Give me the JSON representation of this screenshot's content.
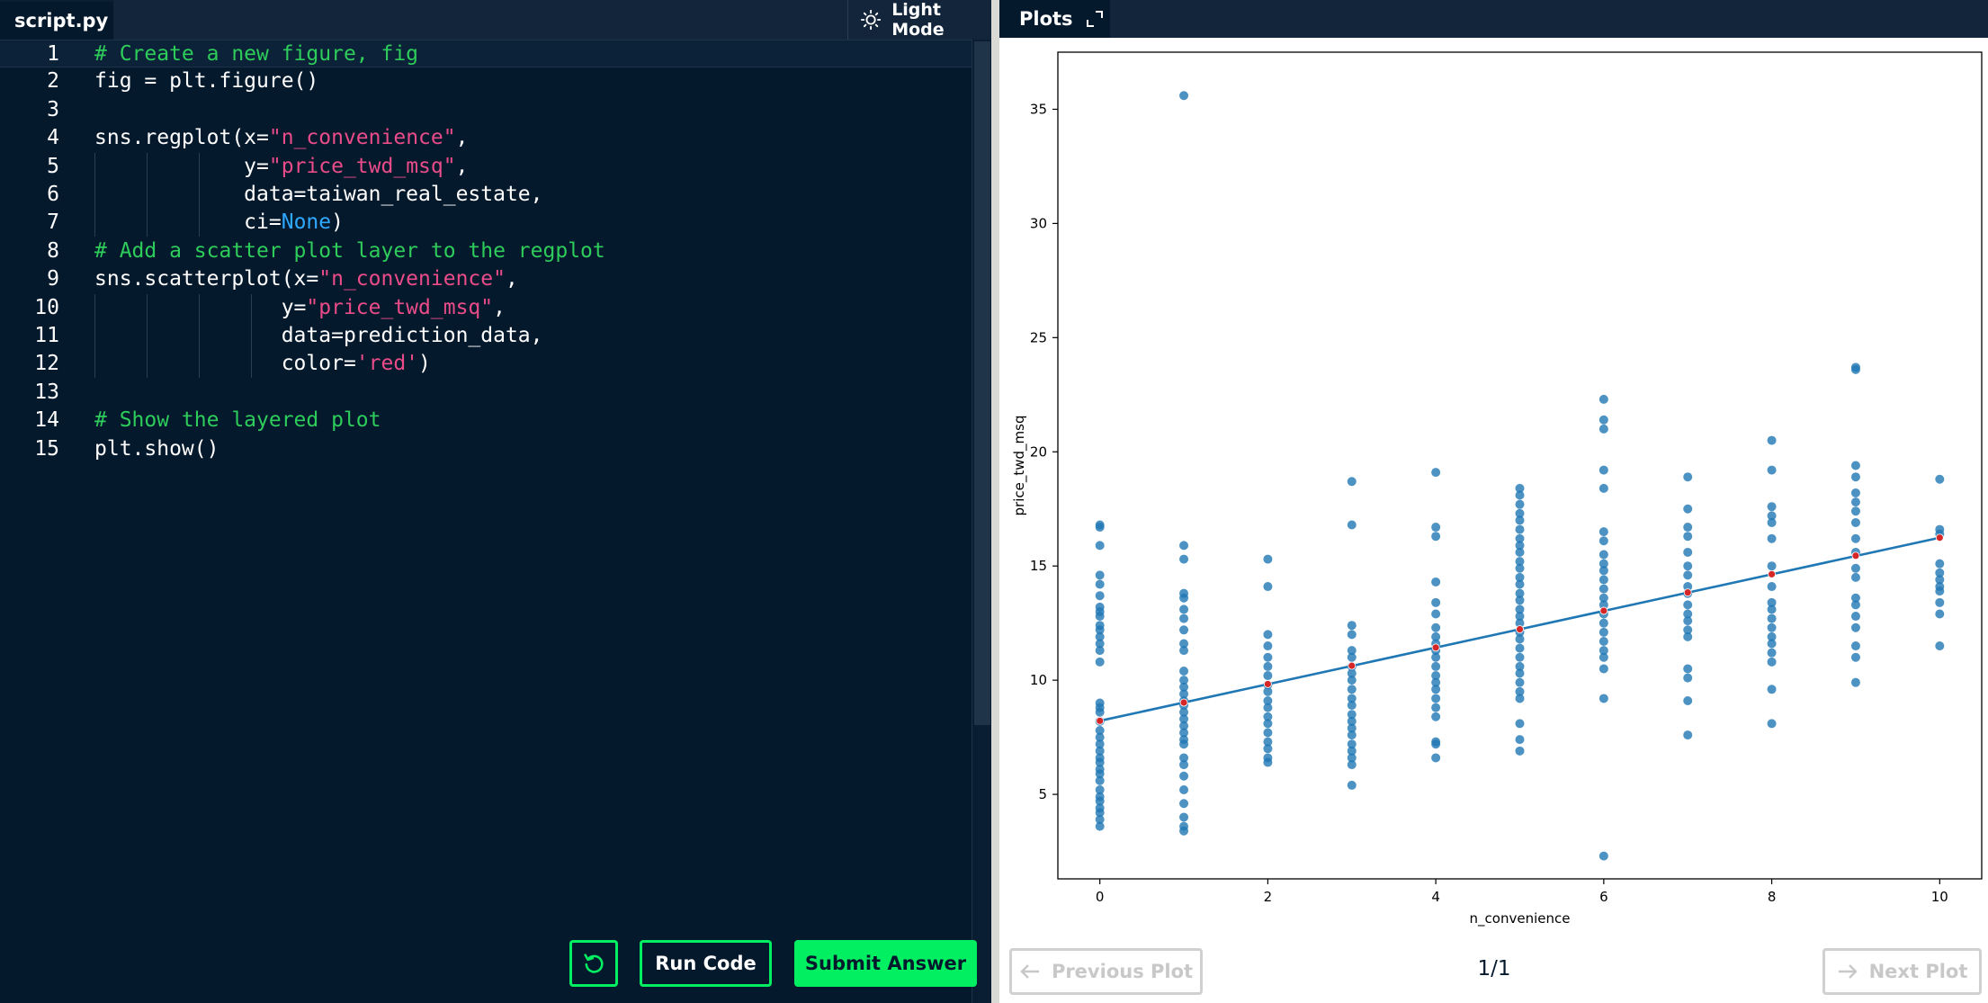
{
  "editor": {
    "tab_label": "script.py",
    "theme_toggle_label": "Light Mode",
    "lines": [
      {
        "num": "1",
        "tokens": [
          {
            "t": "# Create a new figure, fig",
            "c": "comment"
          }
        ]
      },
      {
        "num": "2",
        "tokens": [
          {
            "t": "fig = plt.figure()",
            "c": "plain"
          }
        ]
      },
      {
        "num": "3",
        "tokens": []
      },
      {
        "num": "4",
        "tokens": [
          {
            "t": "sns.regplot(x=",
            "c": "plain"
          },
          {
            "t": "\"n_convenience\"",
            "c": "string"
          },
          {
            "t": ",",
            "c": "plain"
          }
        ]
      },
      {
        "num": "5",
        "tokens": [
          {
            "t": "            y=",
            "c": "plain"
          },
          {
            "t": "\"price_twd_msq\"",
            "c": "string"
          },
          {
            "t": ",",
            "c": "plain"
          }
        ]
      },
      {
        "num": "6",
        "tokens": [
          {
            "t": "            data=taiwan_real_estate,",
            "c": "plain"
          }
        ]
      },
      {
        "num": "7",
        "tokens": [
          {
            "t": "            ci=",
            "c": "plain"
          },
          {
            "t": "None",
            "c": "none"
          },
          {
            "t": ")",
            "c": "plain"
          }
        ]
      },
      {
        "num": "8",
        "tokens": [
          {
            "t": "# Add a scatter plot layer to the regplot",
            "c": "comment"
          }
        ]
      },
      {
        "num": "9",
        "tokens": [
          {
            "t": "sns.scatterplot(x=",
            "c": "plain"
          },
          {
            "t": "\"n_convenience\"",
            "c": "string"
          },
          {
            "t": ",",
            "c": "plain"
          }
        ]
      },
      {
        "num": "10",
        "tokens": [
          {
            "t": "               y=",
            "c": "plain"
          },
          {
            "t": "\"price_twd_msq\"",
            "c": "string"
          },
          {
            "t": ",",
            "c": "plain"
          }
        ]
      },
      {
        "num": "11",
        "tokens": [
          {
            "t": "               data=prediction_data,",
            "c": "plain"
          }
        ]
      },
      {
        "num": "12",
        "tokens": [
          {
            "t": "               color=",
            "c": "plain"
          },
          {
            "t": "'red'",
            "c": "string"
          },
          {
            "t": ")",
            "c": "plain"
          }
        ]
      },
      {
        "num": "13",
        "tokens": []
      },
      {
        "num": "14",
        "tokens": [
          {
            "t": "# Show the layered plot",
            "c": "comment"
          }
        ]
      },
      {
        "num": "15",
        "tokens": [
          {
            "t": "plt.show()",
            "c": "plain"
          }
        ]
      }
    ]
  },
  "buttons": {
    "run_label": "Run Code",
    "submit_label": "Submit Answer"
  },
  "plots": {
    "tab_label": "Plots",
    "prev_label": "Previous Plot",
    "next_label": "Next Plot",
    "page_indicator": "1/1"
  },
  "colors": {
    "accent": "#03ef62",
    "editor_bg": "#05192d",
    "point_blue": "#1f77b4",
    "prediction_red": "#d62728"
  },
  "chart_data": {
    "type": "scatter",
    "xlabel": "n_convenience",
    "ylabel": "price_twd_msq",
    "xlim": [
      -0.5,
      10.5
    ],
    "ylim": [
      1.3,
      37.5
    ],
    "xticks": [
      0,
      2,
      4,
      6,
      8,
      10
    ],
    "yticks": [
      5,
      10,
      15,
      20,
      25,
      30,
      35
    ],
    "grid": false,
    "series": [
      {
        "kind": "scatter",
        "points": [
          [
            0,
            16.8
          ],
          [
            0,
            16.7
          ],
          [
            0,
            15.9
          ],
          [
            0,
            14.6
          ],
          [
            0,
            14.2
          ],
          [
            0,
            13.7
          ],
          [
            0,
            13.2
          ],
          [
            0,
            13.0
          ],
          [
            0,
            12.8
          ],
          [
            0,
            12.4
          ],
          [
            0,
            12.2
          ],
          [
            0,
            11.9
          ],
          [
            0,
            11.6
          ],
          [
            0,
            11.3
          ],
          [
            0,
            10.8
          ],
          [
            0,
            9.0
          ],
          [
            0,
            8.8
          ],
          [
            0,
            8.6
          ],
          [
            0,
            8.2
          ],
          [
            0,
            7.8
          ],
          [
            0,
            7.5
          ],
          [
            0,
            7.2
          ],
          [
            0,
            6.9
          ],
          [
            0,
            6.6
          ],
          [
            0,
            6.4
          ],
          [
            0,
            6.1
          ],
          [
            0,
            5.9
          ],
          [
            0,
            5.6
          ],
          [
            0,
            5.2
          ],
          [
            0,
            4.9
          ],
          [
            0,
            4.7
          ],
          [
            0,
            4.4
          ],
          [
            0,
            4.2
          ],
          [
            0,
            3.9
          ],
          [
            0,
            3.6
          ],
          [
            1,
            35.6
          ],
          [
            1,
            15.9
          ],
          [
            1,
            15.3
          ],
          [
            1,
            13.8
          ],
          [
            1,
            13.6
          ],
          [
            1,
            13.1
          ],
          [
            1,
            12.7
          ],
          [
            1,
            12.2
          ],
          [
            1,
            11.6
          ],
          [
            1,
            11.3
          ],
          [
            1,
            10.4
          ],
          [
            1,
            10.0
          ],
          [
            1,
            9.7
          ],
          [
            1,
            9.4
          ],
          [
            1,
            9.1
          ],
          [
            1,
            8.9
          ],
          [
            1,
            8.6
          ],
          [
            1,
            8.3
          ],
          [
            1,
            8.0
          ],
          [
            1,
            7.7
          ],
          [
            1,
            7.4
          ],
          [
            1,
            7.2
          ],
          [
            1,
            6.6
          ],
          [
            1,
            6.3
          ],
          [
            1,
            5.8
          ],
          [
            1,
            5.2
          ],
          [
            1,
            4.6
          ],
          [
            1,
            4.0
          ],
          [
            1,
            3.6
          ],
          [
            1,
            3.4
          ],
          [
            2,
            15.3
          ],
          [
            2,
            14.1
          ],
          [
            2,
            12.0
          ],
          [
            2,
            11.5
          ],
          [
            2,
            11.0
          ],
          [
            2,
            10.6
          ],
          [
            2,
            10.2
          ],
          [
            2,
            9.8
          ],
          [
            2,
            9.5
          ],
          [
            2,
            9.1
          ],
          [
            2,
            8.8
          ],
          [
            2,
            8.4
          ],
          [
            2,
            8.1
          ],
          [
            2,
            7.7
          ],
          [
            2,
            7.3
          ],
          [
            2,
            7.0
          ],
          [
            2,
            6.6
          ],
          [
            2,
            6.4
          ],
          [
            3,
            18.7
          ],
          [
            3,
            16.8
          ],
          [
            3,
            12.4
          ],
          [
            3,
            12.0
          ],
          [
            3,
            11.3
          ],
          [
            3,
            11.0
          ],
          [
            3,
            10.6
          ],
          [
            3,
            10.3
          ],
          [
            3,
            10.0
          ],
          [
            3,
            9.6
          ],
          [
            3,
            9.2
          ],
          [
            3,
            8.9
          ],
          [
            3,
            8.5
          ],
          [
            3,
            8.2
          ],
          [
            3,
            7.9
          ],
          [
            3,
            7.6
          ],
          [
            3,
            7.2
          ],
          [
            3,
            6.9
          ],
          [
            3,
            6.6
          ],
          [
            3,
            6.3
          ],
          [
            3,
            5.4
          ],
          [
            4,
            19.1
          ],
          [
            4,
            16.7
          ],
          [
            4,
            16.3
          ],
          [
            4,
            14.3
          ],
          [
            4,
            13.4
          ],
          [
            4,
            12.9
          ],
          [
            4,
            12.3
          ],
          [
            4,
            11.9
          ],
          [
            4,
            11.6
          ],
          [
            4,
            11.3
          ],
          [
            4,
            11.0
          ],
          [
            4,
            10.6
          ],
          [
            4,
            10.2
          ],
          [
            4,
            9.9
          ],
          [
            4,
            9.6
          ],
          [
            4,
            9.2
          ],
          [
            4,
            8.8
          ],
          [
            4,
            8.4
          ],
          [
            4,
            7.3
          ],
          [
            4,
            7.2
          ],
          [
            4,
            6.6
          ],
          [
            5,
            18.4
          ],
          [
            5,
            18.1
          ],
          [
            5,
            17.7
          ],
          [
            5,
            17.3
          ],
          [
            5,
            17.0
          ],
          [
            5,
            16.6
          ],
          [
            5,
            16.2
          ],
          [
            5,
            15.9
          ],
          [
            5,
            15.6
          ],
          [
            5,
            15.2
          ],
          [
            5,
            14.9
          ],
          [
            5,
            14.5
          ],
          [
            5,
            14.2
          ],
          [
            5,
            13.8
          ],
          [
            5,
            13.5
          ],
          [
            5,
            13.1
          ],
          [
            5,
            12.8
          ],
          [
            5,
            12.5
          ],
          [
            5,
            12.1
          ],
          [
            5,
            11.8
          ],
          [
            5,
            11.4
          ],
          [
            5,
            11.0
          ],
          [
            5,
            10.6
          ],
          [
            5,
            10.3
          ],
          [
            5,
            9.9
          ],
          [
            5,
            9.5
          ],
          [
            5,
            9.2
          ],
          [
            5,
            8.1
          ],
          [
            5,
            7.4
          ],
          [
            5,
            6.9
          ],
          [
            6,
            22.3
          ],
          [
            6,
            21.4
          ],
          [
            6,
            21.0
          ],
          [
            6,
            19.2
          ],
          [
            6,
            18.4
          ],
          [
            6,
            16.5
          ],
          [
            6,
            16.1
          ],
          [
            6,
            15.5
          ],
          [
            6,
            15.1
          ],
          [
            6,
            14.8
          ],
          [
            6,
            14.4
          ],
          [
            6,
            14.0
          ],
          [
            6,
            13.6
          ],
          [
            6,
            13.3
          ],
          [
            6,
            12.9
          ],
          [
            6,
            12.5
          ],
          [
            6,
            12.1
          ],
          [
            6,
            11.7
          ],
          [
            6,
            11.3
          ],
          [
            6,
            11.0
          ],
          [
            6,
            10.5
          ],
          [
            6,
            9.2
          ],
          [
            6,
            2.3
          ],
          [
            7,
            18.9
          ],
          [
            7,
            17.5
          ],
          [
            7,
            16.7
          ],
          [
            7,
            16.3
          ],
          [
            7,
            15.6
          ],
          [
            7,
            15.0
          ],
          [
            7,
            14.6
          ],
          [
            7,
            14.1
          ],
          [
            7,
            13.8
          ],
          [
            7,
            13.3
          ],
          [
            7,
            12.9
          ],
          [
            7,
            12.6
          ],
          [
            7,
            12.2
          ],
          [
            7,
            11.9
          ],
          [
            7,
            10.5
          ],
          [
            7,
            10.1
          ],
          [
            7,
            9.1
          ],
          [
            7,
            7.6
          ],
          [
            8,
            20.5
          ],
          [
            8,
            19.2
          ],
          [
            8,
            17.6
          ],
          [
            8,
            17.2
          ],
          [
            8,
            16.9
          ],
          [
            8,
            16.2
          ],
          [
            8,
            15.0
          ],
          [
            8,
            14.1
          ],
          [
            8,
            13.4
          ],
          [
            8,
            13.1
          ],
          [
            8,
            12.7
          ],
          [
            8,
            12.3
          ],
          [
            8,
            11.9
          ],
          [
            8,
            11.6
          ],
          [
            8,
            11.2
          ],
          [
            8,
            10.8
          ],
          [
            8,
            9.6
          ],
          [
            8,
            8.1
          ],
          [
            9,
            23.7
          ],
          [
            9,
            23.6
          ],
          [
            9,
            19.4
          ],
          [
            9,
            18.9
          ],
          [
            9,
            18.2
          ],
          [
            9,
            17.8
          ],
          [
            9,
            17.4
          ],
          [
            9,
            16.9
          ],
          [
            9,
            16.2
          ],
          [
            9,
            15.6
          ],
          [
            9,
            14.9
          ],
          [
            9,
            14.5
          ],
          [
            9,
            13.6
          ],
          [
            9,
            13.3
          ],
          [
            9,
            12.8
          ],
          [
            9,
            12.3
          ],
          [
            9,
            11.5
          ],
          [
            9,
            11.0
          ],
          [
            9,
            9.9
          ],
          [
            10,
            18.8
          ],
          [
            10,
            16.6
          ],
          [
            10,
            16.4
          ],
          [
            10,
            15.1
          ],
          [
            10,
            14.7
          ],
          [
            10,
            14.4
          ],
          [
            10,
            14.1
          ],
          [
            10,
            13.9
          ],
          [
            10,
            13.4
          ],
          [
            10,
            12.9
          ],
          [
            10,
            11.5
          ]
        ]
      },
      {
        "kind": "line",
        "points": [
          [
            0,
            8.22
          ],
          [
            10,
            16.24
          ]
        ]
      },
      {
        "kind": "scatter_red",
        "points": [
          [
            0,
            8.22
          ],
          [
            1,
            9.02
          ],
          [
            2,
            9.83
          ],
          [
            3,
            10.63
          ],
          [
            4,
            11.43
          ],
          [
            5,
            12.23
          ],
          [
            6,
            13.04
          ],
          [
            7,
            13.84
          ],
          [
            8,
            14.64
          ],
          [
            9,
            15.45
          ],
          [
            10,
            16.24
          ]
        ]
      }
    ]
  }
}
